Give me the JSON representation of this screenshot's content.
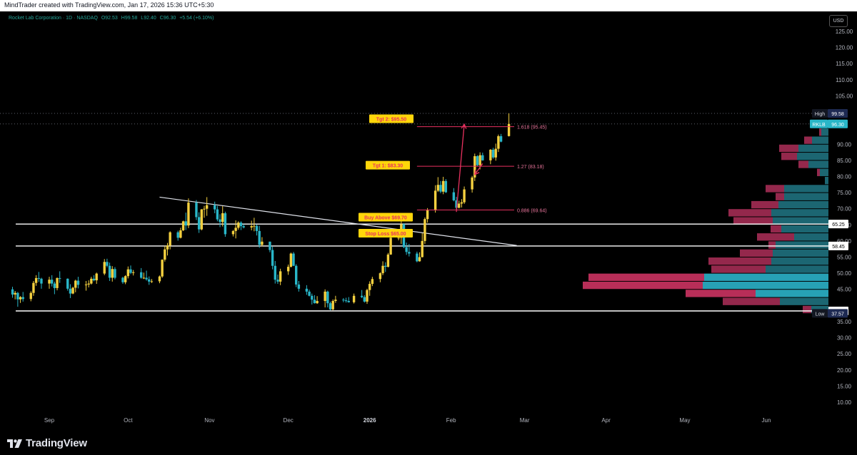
{
  "header": {
    "credit": "MindTrader created with TradingView.com, Jan 17, 2026 15:36 UTC+5:30"
  },
  "legend": {
    "symbol": "Rocket Lab Corporation · 1D · NASDAQ",
    "open": "O92.53",
    "high": "H99.58",
    "low": "L92.40",
    "close": "C96.30",
    "change": "+5.54 (+6.10%)"
  },
  "currency_button": "USD",
  "footer": {
    "brand": "TradingView"
  },
  "colors": {
    "background": "#000000",
    "up_candle": "#f4d03f",
    "down_candle": "#29b6c8",
    "annotation_red": "#e8315f",
    "label_yellow": "#ffd60a",
    "vp_up": "#1e6b78",
    "vp_down": "#9c2a50",
    "vp_down_bright": "#c2305d",
    "vp_up_bright": "#2bb3c9"
  },
  "chart_data": {
    "type": "candlestick",
    "ylim": [
      5,
      128
    ],
    "y_ticks": [
      10,
      15,
      20,
      25,
      30,
      35,
      40,
      45,
      50,
      55,
      60,
      65,
      70,
      75,
      80,
      85,
      90,
      95,
      100,
      105,
      110,
      115,
      120,
      125
    ],
    "y_tick_labels": [
      "10.00",
      "15.00",
      "20.00",
      "25.00",
      "30.00",
      "35.00",
      "40.00",
      "45.00",
      "50.00",
      "55.00",
      "60.00",
      "65.00",
      "70.00",
      "75.00",
      "80.00",
      "85.00",
      "90.00",
      "95.00",
      "100.00",
      "105.00",
      "110.00",
      "115.00",
      "120.00",
      "125.00"
    ],
    "x_ticks": [
      {
        "label": "Sep",
        "date": "2025-09-01"
      },
      {
        "label": "Oct",
        "date": "2025-10-01"
      },
      {
        "label": "Nov",
        "date": "2025-11-01"
      },
      {
        "label": "Dec",
        "date": "2025-12-01"
      },
      {
        "label": "2026",
        "date": "2026-01-01"
      },
      {
        "label": "Feb",
        "date": "2026-02-01"
      },
      {
        "label": "Mar",
        "date": "2026-03-01"
      },
      {
        "label": "Apr",
        "date": "2026-04-01"
      },
      {
        "label": "May",
        "date": "2026-05-01"
      },
      {
        "label": "Jun",
        "date": "2026-06-01"
      }
    ],
    "candles": [
      [
        "2025-08-18",
        45.0,
        45.8,
        42.4,
        43.4
      ],
      [
        "2025-08-19",
        43.4,
        44.5,
        41.9,
        43.9
      ],
      [
        "2025-08-20",
        43.9,
        44.2,
        39.6,
        41.9
      ],
      [
        "2025-08-21",
        41.9,
        42.9,
        40.8,
        42.6
      ],
      [
        "2025-08-22",
        42.6,
        44.2,
        41.2,
        42.0
      ],
      [
        "2025-08-25",
        42.0,
        44.4,
        41.3,
        43.9
      ],
      [
        "2025-08-26",
        43.9,
        47.6,
        43.0,
        47.0
      ],
      [
        "2025-08-27",
        47.0,
        49.4,
        46.1,
        48.5
      ],
      [
        "2025-08-28",
        48.5,
        50.4,
        47.3,
        48.3
      ],
      [
        "2025-08-29",
        48.3,
        48.6,
        45.2,
        46.8
      ],
      [
        "2025-09-01",
        46.8,
        48.9,
        45.2,
        48.0
      ],
      [
        "2025-09-02",
        48.0,
        49.4,
        45.9,
        46.8
      ],
      [
        "2025-09-03",
        46.8,
        47.4,
        43.5,
        45.4
      ],
      [
        "2025-09-04",
        45.4,
        48.7,
        44.7,
        48.5
      ],
      [
        "2025-09-05",
        48.5,
        50.6,
        47.0,
        48.3
      ],
      [
        "2025-09-08",
        48.3,
        48.4,
        44.6,
        45.2
      ],
      [
        "2025-09-09",
        45.2,
        46.6,
        42.3,
        43.7
      ],
      [
        "2025-09-10",
        43.7,
        45.8,
        43.5,
        45.5
      ],
      [
        "2025-09-11",
        45.5,
        48.0,
        44.1,
        47.7
      ],
      [
        "2025-09-12",
        47.7,
        48.9,
        45.3,
        46.4
      ],
      [
        "2025-09-15",
        46.4,
        47.6,
        44.6,
        46.5
      ],
      [
        "2025-09-16",
        46.5,
        47.8,
        45.6,
        46.8
      ],
      [
        "2025-09-17",
        46.8,
        48.9,
        46.5,
        48.3
      ],
      [
        "2025-09-18",
        48.3,
        49.4,
        47.5,
        47.8
      ],
      [
        "2025-09-19",
        47.8,
        50.2,
        46.7,
        49.9
      ],
      [
        "2025-09-22",
        49.9,
        54.4,
        49.4,
        53.5
      ],
      [
        "2025-09-23",
        53.5,
        54.5,
        51.8,
        52.3
      ],
      [
        "2025-09-24",
        52.3,
        53.3,
        47.6,
        48.6
      ],
      [
        "2025-09-25",
        48.6,
        52.2,
        47.4,
        51.3
      ],
      [
        "2025-09-26",
        51.3,
        51.9,
        48.1,
        48.6
      ],
      [
        "2025-09-29",
        48.6,
        48.9,
        46.7,
        47.2
      ],
      [
        "2025-09-30",
        47.2,
        49.4,
        46.6,
        49.1
      ],
      [
        "2025-10-01",
        49.1,
        52.1,
        48.4,
        51.2
      ],
      [
        "2025-10-02",
        51.2,
        52.4,
        49.7,
        50.1
      ],
      [
        "2025-10-03",
        50.1,
        51.0,
        49.3,
        50.3
      ],
      [
        "2025-10-06",
        50.3,
        51.6,
        48.3,
        48.6
      ],
      [
        "2025-10-07",
        48.6,
        50.2,
        48.2,
        48.6
      ],
      [
        "2025-10-08",
        48.6,
        50.8,
        47.7,
        48.1
      ],
      [
        "2025-10-09",
        48.1,
        49.0,
        46.4,
        47.4
      ],
      [
        "2025-10-10",
        47.4,
        48.2,
        47.0,
        47.5
      ],
      [
        "2025-10-13",
        47.5,
        49.3,
        46.9,
        49.0
      ],
      [
        "2025-10-14",
        49.0,
        54.3,
        48.6,
        54.2
      ],
      [
        "2025-10-15",
        54.2,
        58.5,
        53.6,
        57.4
      ],
      [
        "2025-10-16",
        57.4,
        59.4,
        55.5,
        58.6
      ],
      [
        "2025-10-17",
        58.6,
        63.0,
        57.4,
        62.7
      ],
      [
        "2025-10-20",
        62.7,
        63.2,
        60.1,
        61.0
      ],
      [
        "2025-10-21",
        61.0,
        64.1,
        60.8,
        63.3
      ],
      [
        "2025-10-22",
        63.3,
        66.3,
        63.1,
        66.1
      ],
      [
        "2025-10-23",
        66.1,
        68.8,
        63.4,
        64.8
      ],
      [
        "2025-10-24",
        64.8,
        73.2,
        64.0,
        71.9
      ],
      [
        "2025-10-27",
        71.9,
        72.7,
        66.5,
        67.4
      ],
      [
        "2025-10-28",
        67.4,
        68.9,
        62.5,
        63.6
      ],
      [
        "2025-10-29",
        63.6,
        69.9,
        63.3,
        69.8
      ],
      [
        "2025-10-30",
        69.8,
        70.9,
        67.2,
        70.0
      ],
      [
        "2025-10-31",
        70.0,
        73.6,
        67.8,
        71.1
      ],
      [
        "2025-11-03",
        71.1,
        72.2,
        68.6,
        69.8
      ],
      [
        "2025-11-04",
        69.8,
        70.9,
        66.1,
        66.7
      ],
      [
        "2025-11-05",
        66.7,
        68.3,
        64.3,
        65.9
      ],
      [
        "2025-11-06",
        65.9,
        70.8,
        64.5,
        68.6
      ],
      [
        "2025-11-07",
        68.6,
        69.1,
        61.3,
        62.1
      ],
      [
        "2025-11-10",
        62.1,
        63.4,
        61.4,
        63.1
      ],
      [
        "2025-11-11",
        63.1,
        66.4,
        60.8,
        64.1
      ],
      [
        "2025-11-12",
        64.1,
        66.1,
        63.5,
        65.7
      ],
      [
        "2025-11-13",
        65.7,
        66.1,
        63.4,
        64.6
      ],
      [
        "2025-11-14",
        64.6,
        65.2,
        63.9,
        64.2
      ],
      [
        "2025-11-17",
        64.2,
        66.3,
        63.3,
        64.6
      ],
      [
        "2025-11-18",
        64.6,
        67.2,
        63.0,
        64.7
      ],
      [
        "2025-11-19",
        64.7,
        65.1,
        61.7,
        63.1
      ],
      [
        "2025-11-20",
        63.1,
        64.7,
        57.9,
        58.8
      ],
      [
        "2025-11-21",
        58.8,
        61.2,
        58.3,
        59.8
      ],
      [
        "2025-11-24",
        59.8,
        59.8,
        56.5,
        57.2
      ],
      [
        "2025-11-25",
        57.2,
        58.2,
        51.2,
        52.3
      ],
      [
        "2025-11-26",
        52.3,
        53.8,
        46.8,
        48.0
      ],
      [
        "2025-11-27",
        48.0,
        49.6,
        46.7,
        47.4
      ],
      [
        "2025-11-28",
        47.4,
        51.4,
        46.3,
        50.6
      ],
      [
        "2025-12-01",
        50.6,
        52.7,
        49.5,
        52.0
      ],
      [
        "2025-12-02",
        52.0,
        56.4,
        51.8,
        56.1
      ],
      [
        "2025-12-03",
        56.1,
        56.6,
        52.2,
        52.3
      ],
      [
        "2025-12-04",
        52.3,
        52.8,
        45.7,
        46.5
      ],
      [
        "2025-12-05",
        46.5,
        47.6,
        44.3,
        45.2
      ],
      [
        "2025-12-08",
        45.2,
        46.3,
        43.3,
        44.3
      ],
      [
        "2025-12-09",
        44.3,
        44.9,
        42.8,
        43.0
      ],
      [
        "2025-12-10",
        43.0,
        43.7,
        40.3,
        41.8
      ],
      [
        "2025-12-11",
        41.8,
        43.2,
        40.6,
        40.7
      ],
      [
        "2025-12-12",
        40.7,
        42.9,
        40.5,
        41.4
      ],
      [
        "2025-12-15",
        41.4,
        45.0,
        39.4,
        44.3
      ],
      [
        "2025-12-16",
        44.3,
        44.6,
        39.4,
        40.7
      ],
      [
        "2025-12-17",
        40.7,
        41.2,
        38.5,
        38.8
      ],
      [
        "2025-12-18",
        38.8,
        41.9,
        38.5,
        41.4
      ],
      [
        "2025-12-19",
        41.4,
        43.0,
        40.8,
        41.8
      ],
      [
        "2025-12-22",
        41.8,
        42.3,
        41.0,
        41.6
      ],
      [
        "2025-12-23",
        41.6,
        42.4,
        40.9,
        41.4
      ],
      [
        "2025-12-24",
        41.4,
        42.6,
        40.9,
        41.0
      ],
      [
        "2025-12-26",
        41.0,
        43.7,
        40.6,
        43.0
      ],
      [
        "2025-12-29",
        43.0,
        44.8,
        42.3,
        42.6
      ],
      [
        "2025-12-30",
        42.6,
        43.2,
        40.9,
        41.2
      ],
      [
        "2025-12-31",
        41.2,
        45.2,
        40.5,
        44.8
      ],
      [
        "2026-01-01",
        44.8,
        47.5,
        43.0,
        46.7
      ],
      [
        "2026-01-02",
        46.7,
        48.9,
        46.0,
        48.2
      ],
      [
        "2026-01-05",
        48.2,
        50.3,
        47.2,
        50.0
      ],
      [
        "2026-01-06",
        50.0,
        53.7,
        49.4,
        52.3
      ],
      [
        "2026-01-07",
        52.3,
        53.4,
        50.4,
        52.0
      ],
      [
        "2026-01-08",
        52.0,
        56.3,
        51.8,
        55.8
      ],
      [
        "2026-01-09",
        55.8,
        61.6,
        55.7,
        61.0
      ],
      [
        "2026-01-12",
        61.0,
        63.4,
        60.2,
        61.0
      ],
      [
        "2026-01-13",
        61.0,
        66.3,
        59.1,
        65.2
      ],
      [
        "2026-01-14",
        65.2,
        65.5,
        57.8,
        58.1
      ],
      [
        "2026-01-15",
        58.1,
        59.5,
        55.7,
        56.6
      ],
      [
        "2026-01-16",
        56.6,
        59.1,
        55.2,
        56.1
      ],
      [
        "2026-01-19",
        56.1,
        56.7,
        53.4,
        53.7
      ],
      [
        "2026-01-20",
        53.7,
        56.5,
        53.6,
        55.0
      ],
      [
        "2026-01-21",
        55.0,
        62.4,
        54.9,
        60.0
      ],
      [
        "2026-01-22",
        60.0,
        67.3,
        59.1,
        66.8
      ],
      [
        "2026-01-23",
        66.8,
        70.2,
        65.7,
        69.5
      ],
      [
        "2026-01-26",
        69.5,
        77.3,
        68.8,
        75.6
      ],
      [
        "2026-01-27",
        75.6,
        79.8,
        75.2,
        77.4
      ],
      [
        "2026-01-28",
        77.4,
        78.6,
        74.8,
        75.3
      ],
      [
        "2026-01-29",
        75.3,
        79.9,
        74.5,
        78.6
      ],
      [
        "2026-01-30",
        78.6,
        79.2,
        74.9,
        75.1
      ],
      [
        "2026-02-02",
        75.1,
        76.4,
        72.3,
        72.6
      ],
      [
        "2026-02-03",
        72.6,
        73.7,
        69.6,
        70.3
      ],
      [
        "2026-02-04",
        70.3,
        72.5,
        70.1,
        71.6
      ],
      [
        "2026-02-05",
        71.6,
        73.0,
        70.4,
        72.0
      ],
      [
        "2026-02-06",
        72.0,
        76.9,
        71.5,
        76.0
      ],
      [
        "2026-02-09",
        76.0,
        80.2,
        75.0,
        79.7
      ],
      [
        "2026-02-10",
        79.7,
        87.1,
        78.6,
        86.3
      ],
      [
        "2026-02-11",
        86.3,
        86.6,
        83.2,
        83.5
      ],
      [
        "2026-02-12",
        83.5,
        87.5,
        82.2,
        86.6
      ],
      [
        "2026-02-13",
        86.6,
        87.4,
        84.9,
        85.0
      ],
      [
        "2026-02-16",
        85.0,
        88.5,
        83.8,
        88.3
      ],
      [
        "2026-02-17",
        88.3,
        88.9,
        85.5,
        85.9
      ],
      [
        "2026-02-18",
        85.9,
        90.2,
        84.9,
        88.6
      ],
      [
        "2026-02-19",
        88.6,
        93.0,
        87.6,
        92.5
      ],
      [
        "2026-02-20",
        92.5,
        93.2,
        90.6,
        90.8
      ],
      [
        "2026-02-23",
        92.53,
        99.58,
        92.4,
        96.3
      ]
    ],
    "volume_profile": [
      {
        "price": 96.25,
        "up": 6,
        "down": 0
      },
      {
        "price": 93.75,
        "up": 10,
        "down": 3
      },
      {
        "price": 91.25,
        "up": 23,
        "down": 11
      },
      {
        "price": 88.75,
        "up": 42,
        "down": 27
      },
      {
        "price": 86.25,
        "up": 44,
        "down": 22
      },
      {
        "price": 83.75,
        "up": 28,
        "down": 14
      },
      {
        "price": 81.25,
        "up": 12,
        "down": 4
      },
      {
        "price": 78.75,
        "up": 5,
        "down": 0
      },
      {
        "price": 76.25,
        "up": 62,
        "down": 26
      },
      {
        "price": 73.75,
        "up": 62,
        "down": 12
      },
      {
        "price": 71.25,
        "up": 70,
        "down": 38
      },
      {
        "price": 68.75,
        "up": 80,
        "down": 60
      },
      {
        "price": 66.25,
        "up": 78,
        "down": 55
      },
      {
        "price": 63.75,
        "up": 66,
        "down": 15
      },
      {
        "price": 61.25,
        "up": 48,
        "down": 52
      },
      {
        "price": 58.75,
        "up": 74,
        "down": 10
      },
      {
        "price": 56.25,
        "up": 78,
        "down": 46
      },
      {
        "price": 53.75,
        "up": 80,
        "down": 88
      },
      {
        "price": 51.25,
        "up": 88,
        "down": 76
      },
      {
        "price": 48.75,
        "up": 174,
        "down": 162
      },
      {
        "price": 46.25,
        "up": 176,
        "down": 168
      },
      {
        "price": 43.75,
        "up": 102,
        "down": 98
      },
      {
        "price": 41.25,
        "up": 68,
        "down": 80
      },
      {
        "price": 38.75,
        "up": 24,
        "down": 12
      }
    ],
    "horizontal_lines": [
      {
        "price": 65.25,
        "label": "65.25"
      },
      {
        "price": 58.45,
        "label": "58.45"
      },
      {
        "price": 38.31,
        "label": "38.31"
      }
    ],
    "dotted_lines": [
      {
        "price": 99.58
      },
      {
        "price": 96.3
      }
    ],
    "trendline": {
      "from": [
        "2025-10-13",
        73.6
      ],
      "to": [
        "2026-02-26",
        58.6
      ]
    },
    "fib_levels": [
      {
        "ratio_label": "1.618 (95.45)",
        "price": 95.45
      },
      {
        "ratio_label": "1.27 (83.18)",
        "price": 83.18
      },
      {
        "ratio_label": "0.886 (69.64)",
        "price": 69.64
      }
    ],
    "annotations": [
      {
        "text": "Tgt 2: $95.50",
        "price": 97.8,
        "date": "2026-02-10"
      },
      {
        "text": "Tgt 1: $83.30",
        "price": 83.3,
        "date": "2026-02-08"
      },
      {
        "text": "Buy Above $69.70",
        "price": 67.3,
        "date": "2026-02-11"
      },
      {
        "text": "Stop Loss $65.00",
        "price": 62.6,
        "date": "2026-02-11"
      }
    ],
    "price_tags": {
      "high": {
        "label": "High",
        "value": "99.58"
      },
      "current": {
        "label": "RKLB",
        "value": "96.30"
      },
      "low": {
        "label": "Low",
        "value": "37.57"
      }
    }
  }
}
